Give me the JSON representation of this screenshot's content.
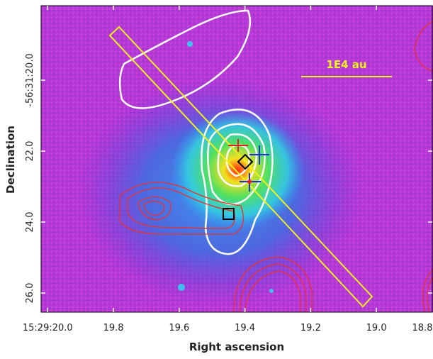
{
  "chart_data": {
    "type": "image",
    "x_label": "Right ascension",
    "y_label": "Declination",
    "scale_bar_label": "1E4 au",
    "xlim": [
      20.02,
      18.83
    ],
    "ylim": [
      26.54,
      17.9
    ],
    "xticks": [
      {
        "value": 20.0,
        "label": "15:29:20.0"
      },
      {
        "value": 19.8,
        "label": "19.8"
      },
      {
        "value": 19.6,
        "label": "19.6"
      },
      {
        "value": 19.4,
        "label": "19.4"
      },
      {
        "value": 19.2,
        "label": "19.2"
      },
      {
        "value": 19.0,
        "label": "19.0"
      },
      {
        "value": 18.8,
        "label": "18.8"
      }
    ],
    "yticks": [
      {
        "value": 20.0,
        "label": "-56:31:20.0"
      },
      {
        "value": 22.0,
        "label": "22.0"
      },
      {
        "value": 24.0,
        "label": "24.0"
      },
      {
        "value": 26.0,
        "label": "26.0"
      }
    ]
  }
}
